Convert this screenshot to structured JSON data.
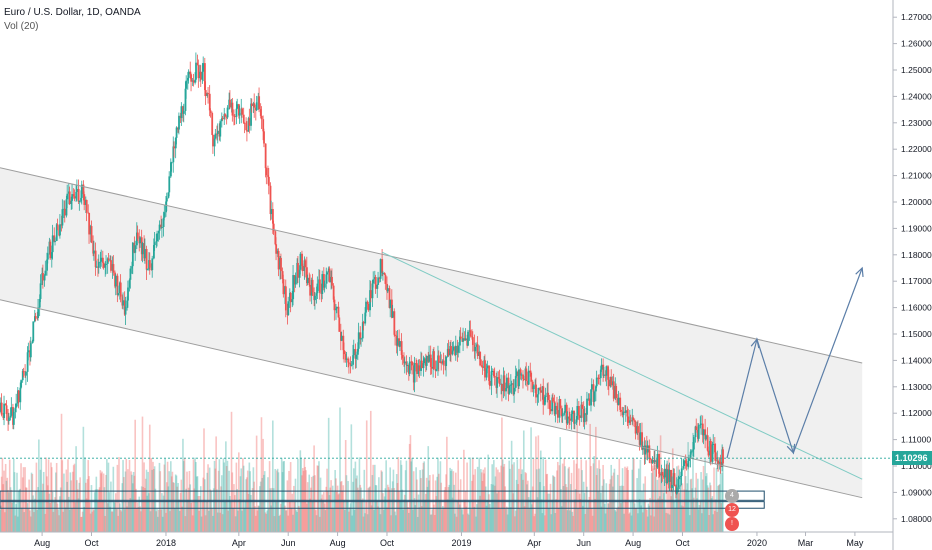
{
  "legend": {
    "symbol": "Euro / U.S. Dollar, 1D, OANDA",
    "volume": "Vol (20)"
  },
  "last_price": "1.10296",
  "colors": {
    "up": "#26a69a",
    "down": "#ef5350",
    "channel_fill": "#f0f0f0",
    "channel_line": "#9e9e9e",
    "trendline": "#80cbc4",
    "projection": "#5b7ea8",
    "zone": "#1e4d6b",
    "badge": "#26a69a"
  },
  "chart_data": {
    "type": "candlestick",
    "title": "Euro / U.S. Dollar, 1D, OANDA",
    "ylim": [
      1.075,
      1.275
    ],
    "yticks": [
      "1.08000",
      "1.09000",
      "1.10000",
      "1.11000",
      "1.12000",
      "1.13000",
      "1.14000",
      "1.15000",
      "1.16000",
      "1.17000",
      "1.18000",
      "1.19000",
      "1.20000",
      "1.21000",
      "1.22000",
      "1.23000",
      "1.24000",
      "1.25000",
      "1.26000",
      "1.27000"
    ],
    "yticks_values": [
      1.08,
      1.09,
      1.1,
      1.11,
      1.12,
      1.13,
      1.14,
      1.15,
      1.16,
      1.17,
      1.18,
      1.19,
      1.2,
      1.21,
      1.22,
      1.23,
      1.24,
      1.25,
      1.26,
      1.27
    ],
    "xticks": [
      "Aug",
      "Oct",
      "2018",
      "Apr",
      "Jun",
      "Aug",
      "Oct",
      "2019",
      "Apr",
      "Jun",
      "Aug",
      "Oct",
      "2020",
      "Mar",
      "May"
    ],
    "xticks_dates": [
      "2017-08-01",
      "2017-10-01",
      "2018-01-01",
      "2018-04-01",
      "2018-06-01",
      "2018-08-01",
      "2018-10-01",
      "2019-01-01",
      "2019-04-01",
      "2019-06-01",
      "2019-08-01",
      "2019-10-01",
      "2020-01-01",
      "2020-03-01",
      "2020-05-01"
    ],
    "price_path": [
      [
        "2017-06-01",
        1.125
      ],
      [
        "2017-06-25",
        1.118
      ],
      [
        "2017-07-20",
        1.15
      ],
      [
        "2017-08-05",
        1.178
      ],
      [
        "2017-09-01",
        1.2
      ],
      [
        "2017-09-20",
        1.205
      ],
      [
        "2017-10-05",
        1.178
      ],
      [
        "2017-10-25",
        1.175
      ],
      [
        "2017-11-10",
        1.16
      ],
      [
        "2017-11-25",
        1.19
      ],
      [
        "2017-12-10",
        1.175
      ],
      [
        "2017-12-25",
        1.19
      ],
      [
        "2018-01-15",
        1.228
      ],
      [
        "2018-01-30",
        1.248
      ],
      [
        "2018-02-15",
        1.25
      ],
      [
        "2018-03-01",
        1.222
      ],
      [
        "2018-03-20",
        1.238
      ],
      [
        "2018-04-10",
        1.23
      ],
      [
        "2018-04-25",
        1.24
      ],
      [
        "2018-05-10",
        1.195
      ],
      [
        "2018-05-30",
        1.16
      ],
      [
        "2018-06-15",
        1.178
      ],
      [
        "2018-07-01",
        1.165
      ],
      [
        "2018-07-20",
        1.172
      ],
      [
        "2018-08-15",
        1.135
      ],
      [
        "2018-09-05",
        1.16
      ],
      [
        "2018-09-25",
        1.178
      ],
      [
        "2018-10-10",
        1.15
      ],
      [
        "2018-11-01",
        1.135
      ],
      [
        "2018-11-20",
        1.14
      ],
      [
        "2018-12-10",
        1.14
      ],
      [
        "2019-01-10",
        1.15
      ],
      [
        "2019-02-01",
        1.135
      ],
      [
        "2019-03-01",
        1.13
      ],
      [
        "2019-03-20",
        1.135
      ],
      [
        "2019-04-15",
        1.125
      ],
      [
        "2019-05-10",
        1.12
      ],
      [
        "2019-06-01",
        1.12
      ],
      [
        "2019-06-25",
        1.138
      ],
      [
        "2019-07-20",
        1.12
      ],
      [
        "2019-08-10",
        1.11
      ],
      [
        "2019-09-01",
        1.1
      ],
      [
        "2019-09-25",
        1.092
      ],
      [
        "2019-10-20",
        1.115
      ],
      [
        "2019-11-05",
        1.105
      ],
      [
        "2019-11-20",
        1.103
      ]
    ],
    "channel": {
      "upper": [
        [
          "2017-06-10",
          1.213
        ],
        [
          "2020-05-10",
          1.139
        ]
      ],
      "lower": [
        [
          "2017-06-10",
          1.163
        ],
        [
          "2020-05-10",
          1.088
        ]
      ]
    },
    "trendline": [
      [
        "2018-09-25",
        1.181
      ],
      [
        "2020-05-10",
        1.095
      ]
    ],
    "projection": [
      [
        "2019-11-25",
        1.103
      ],
      [
        "2020-01-01",
        1.148
      ],
      [
        "2020-02-15",
        1.105
      ],
      [
        "2020-05-10",
        1.175
      ]
    ],
    "zones": [
      {
        "top": 1.0905,
        "bottom": 1.087,
        "end": "2020-01-10"
      },
      {
        "top": 1.0865,
        "bottom": 1.084,
        "end": "2020-01-10"
      }
    ]
  },
  "icons": {
    "alert_flags": [
      "flag-icon",
      "flag-icon"
    ]
  }
}
